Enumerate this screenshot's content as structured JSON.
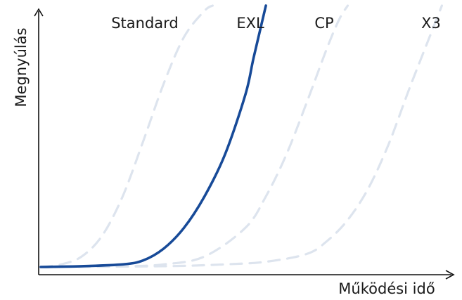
{
  "chart_data": {
    "type": "line",
    "title": "",
    "xlabel": "Működési idő",
    "ylabel": "Megnyúlás",
    "xlim": [
      0,
      100
    ],
    "ylim": [
      0,
      100
    ],
    "grid": false,
    "ticks_shown": false,
    "series": [
      {
        "name": "Standard",
        "style": "dashed",
        "color": "#dde4ee",
        "x": [
          0,
          5,
          10,
          15,
          20,
          25,
          30,
          35,
          40,
          42
        ],
        "y": [
          0,
          1,
          4,
          12,
          27,
          48,
          70,
          88,
          98,
          100
        ]
      },
      {
        "name": "EXL",
        "style": "solid",
        "color": "#174a98",
        "x": [
          0,
          10,
          20,
          25,
          30,
          35,
          40,
          45,
          50,
          52,
          55
        ],
        "y": [
          0,
          0.3,
          1,
          2.5,
          7,
          15,
          27,
          43,
          66,
          80,
          100
        ]
      },
      {
        "name": "CP",
        "style": "dashed",
        "color": "#dde4ee",
        "x": [
          0,
          20,
          30,
          40,
          50,
          55,
          60,
          65,
          70,
          73,
          75
        ],
        "y": [
          0,
          0.3,
          1,
          4,
          15,
          27,
          43,
          63,
          84,
          95,
          100
        ]
      },
      {
        "name": "X3",
        "style": "dashed",
        "color": "#dde4ee",
        "x": [
          0,
          30,
          45,
          55,
          65,
          70,
          75,
          80,
          85,
          90,
          95,
          98
        ],
        "y": [
          0,
          0.3,
          1,
          2,
          5,
          10,
          18,
          30,
          47,
          68,
          88,
          100
        ]
      }
    ]
  }
}
